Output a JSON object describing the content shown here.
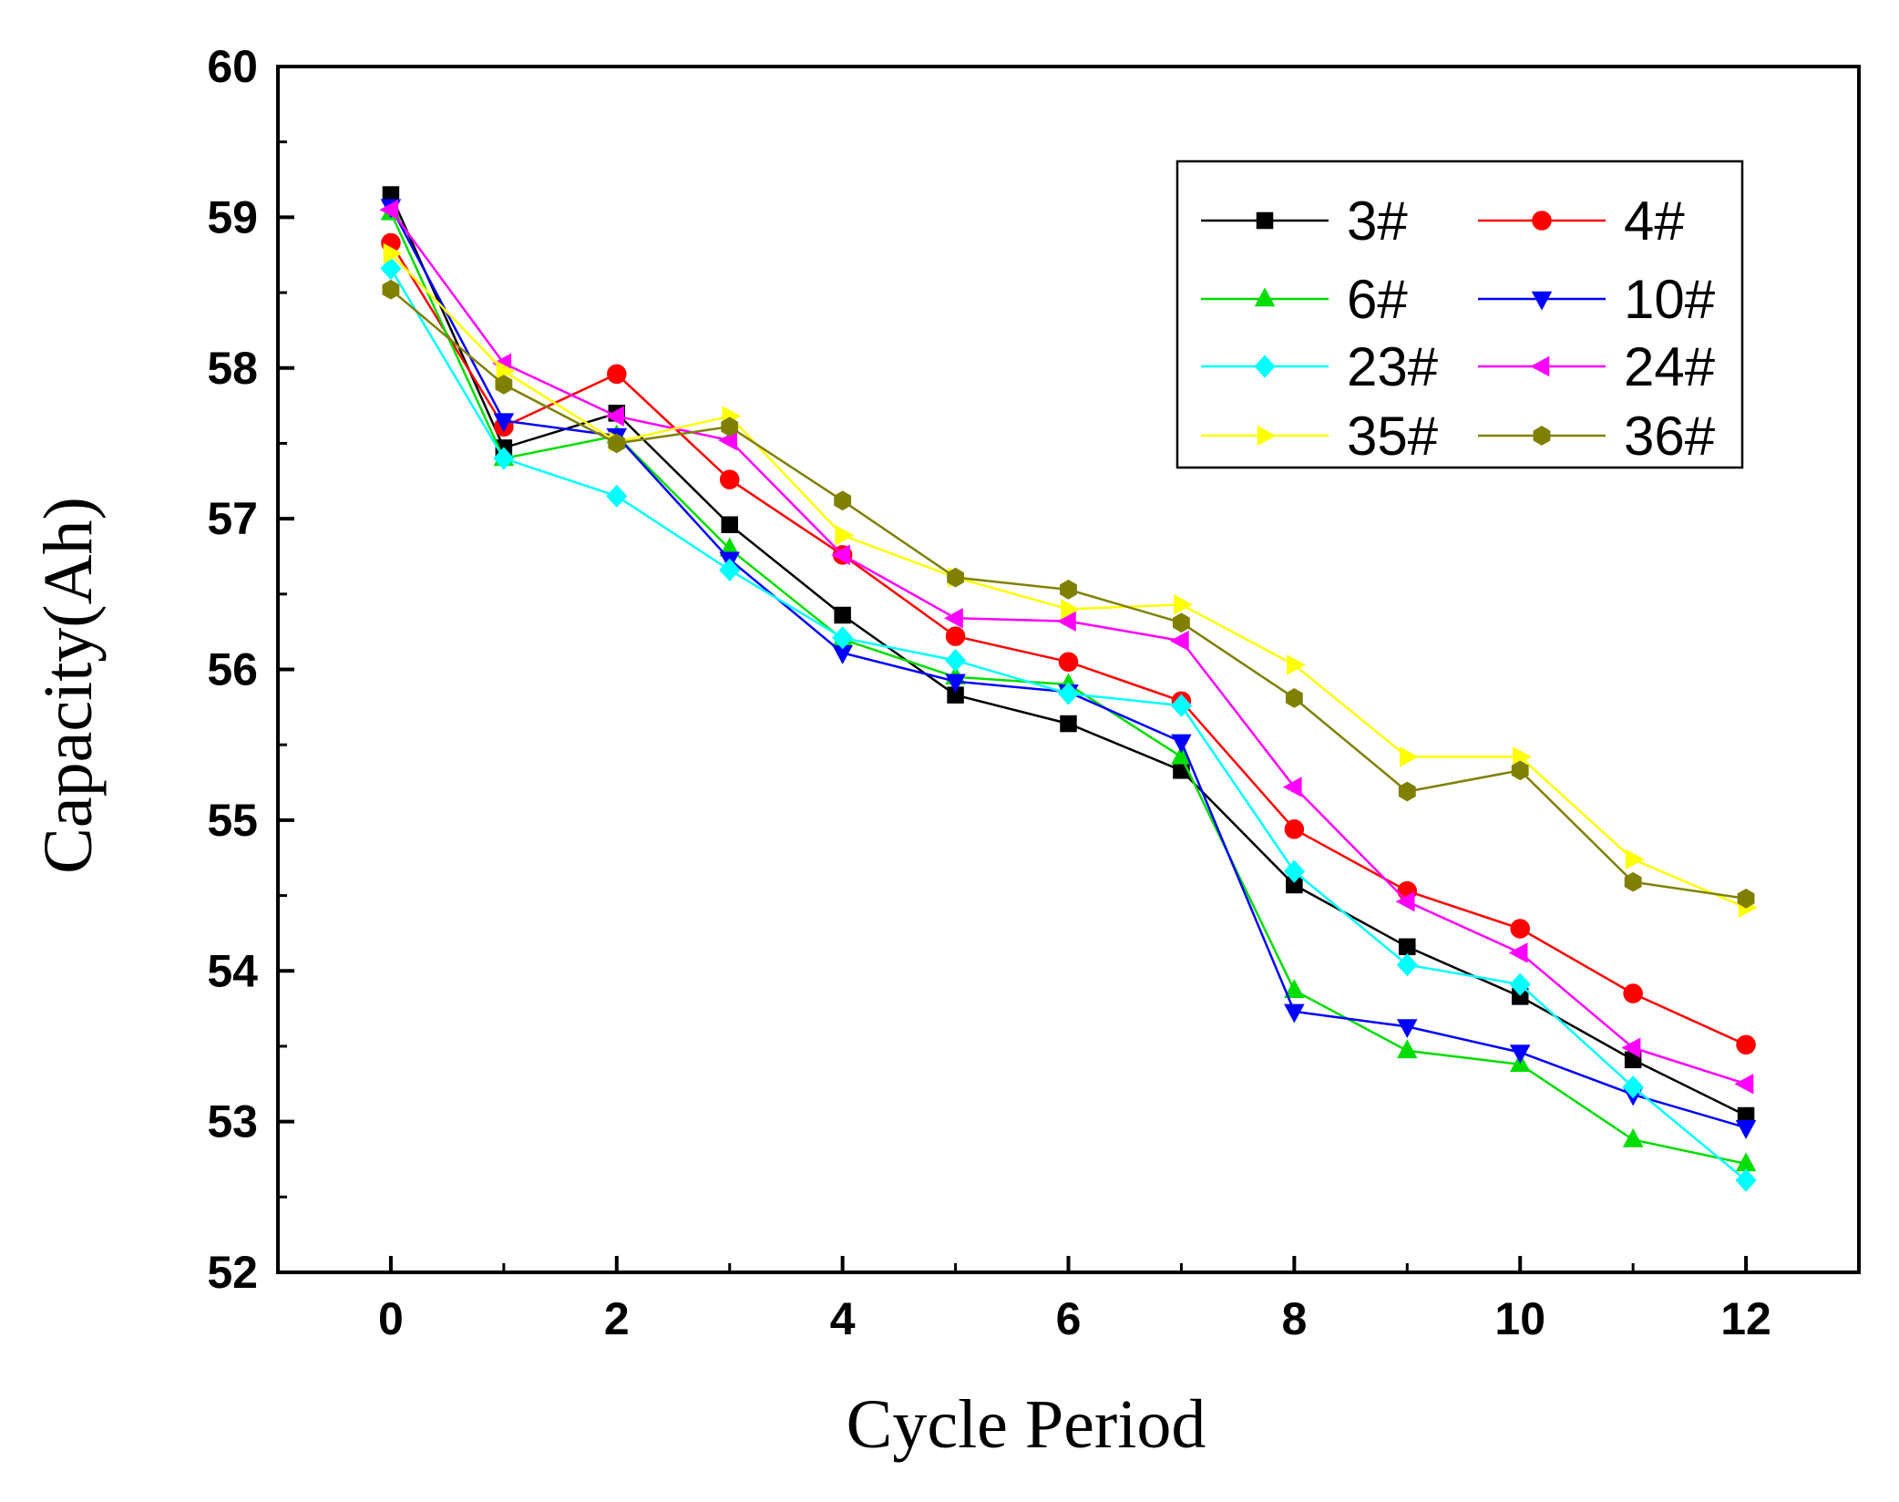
{
  "chart_data": {
    "type": "line",
    "title": "",
    "xlabel": "Cycle Period",
    "ylabel": "Capacity(Ah)",
    "xlim": [
      -1,
      13
    ],
    "ylim": [
      52,
      60
    ],
    "x_ticks": [
      "0",
      "2",
      "4",
      "6",
      "8",
      "10",
      "12"
    ],
    "y_ticks": [
      "52",
      "53",
      "54",
      "55",
      "56",
      "57",
      "58",
      "59",
      "60"
    ],
    "legend_position": "top-right",
    "x": [
      0,
      1,
      2,
      3,
      4,
      5,
      6,
      7,
      8,
      9,
      10,
      11,
      12
    ],
    "series": [
      {
        "name": "3#",
        "color": "#000000",
        "marker": "square",
        "values": [
          59.15,
          57.47,
          57.7,
          56.96,
          56.36,
          55.83,
          55.64,
          55.33,
          54.57,
          54.16,
          53.83,
          53.41,
          53.04
        ]
      },
      {
        "name": "4#",
        "color": "#FF0000",
        "marker": "circle",
        "values": [
          58.83,
          57.61,
          57.96,
          57.26,
          56.76,
          56.22,
          56.05,
          55.79,
          54.94,
          54.53,
          54.28,
          53.85,
          53.51
        ]
      },
      {
        "name": "6#",
        "color": "#00DD00",
        "marker": "triangle-up",
        "values": [
          59.03,
          57.4,
          57.55,
          56.8,
          56.2,
          55.95,
          55.9,
          55.42,
          53.87,
          53.47,
          53.38,
          52.88,
          52.72
        ]
      },
      {
        "name": "10#",
        "color": "#0000FF",
        "marker": "triangle-down",
        "values": [
          59.07,
          57.65,
          57.55,
          56.73,
          56.11,
          55.92,
          55.85,
          55.52,
          53.73,
          53.63,
          53.46,
          53.18,
          52.96
        ]
      },
      {
        "name": "23#",
        "color": "#00FFFF",
        "marker": "diamond",
        "values": [
          58.66,
          57.4,
          57.15,
          56.66,
          56.21,
          56.06,
          55.84,
          55.76,
          54.66,
          54.04,
          53.91,
          53.23,
          52.61
        ]
      },
      {
        "name": "24#",
        "color": "#FF00FF",
        "marker": "triangle-left",
        "values": [
          59.05,
          58.03,
          57.68,
          57.52,
          56.76,
          56.34,
          56.32,
          56.19,
          55.22,
          54.46,
          54.12,
          53.49,
          53.25
        ]
      },
      {
        "name": "35#",
        "color": "#FFFF00",
        "marker": "triangle-right",
        "values": [
          58.76,
          57.98,
          57.51,
          57.68,
          56.89,
          56.61,
          56.4,
          56.43,
          56.03,
          55.42,
          55.42,
          54.74,
          54.42
        ]
      },
      {
        "name": "36#",
        "color": "#808000",
        "marker": "hexagon",
        "values": [
          58.52,
          57.89,
          57.5,
          57.61,
          57.12,
          56.61,
          56.53,
          56.31,
          55.81,
          55.19,
          55.33,
          54.59,
          54.48
        ]
      }
    ]
  }
}
